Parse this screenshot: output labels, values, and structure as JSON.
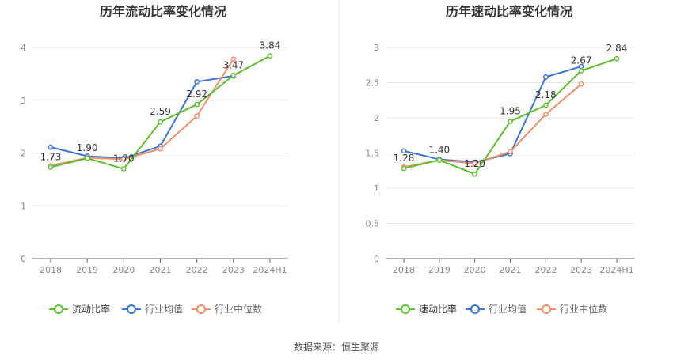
{
  "footer": {
    "source": "数据来源：恒生聚源"
  },
  "colors": {
    "primary": "#5dbf2c",
    "industry_avg": "#3b73d6",
    "industry_median": "#f0906a",
    "grid": "#e6e6e6",
    "axis": "#666666"
  },
  "chart_data": [
    {
      "type": "line",
      "title": "历年流动比率变化情况",
      "categories": [
        "2018",
        "2019",
        "2020",
        "2021",
        "2022",
        "2023",
        "2024H1"
      ],
      "ylim": [
        0,
        4
      ],
      "yticks": [
        "0",
        "1",
        "2",
        "3",
        "4"
      ],
      "grid": true,
      "legend_position": "bottom",
      "series": [
        {
          "name": "流动比率",
          "values": [
            1.73,
            1.9,
            1.7,
            2.59,
            2.92,
            3.47,
            3.84
          ],
          "labels": [
            "1.73",
            "1.90",
            "1.70",
            "2.59",
            "2.92",
            "3.47",
            "3.84"
          ]
        },
        {
          "name": "行业均值",
          "values": [
            2.11,
            1.94,
            1.9,
            2.13,
            3.35,
            3.46,
            null
          ]
        },
        {
          "name": "行业中位数",
          "values": [
            1.76,
            1.91,
            1.88,
            2.08,
            2.7,
            3.78,
            null
          ]
        }
      ]
    },
    {
      "type": "line",
      "title": "历年速动比率变化情况",
      "categories": [
        "2018",
        "2019",
        "2020",
        "2021",
        "2022",
        "2023",
        "2024H1"
      ],
      "ylim": [
        0,
        3
      ],
      "yticks": [
        "0",
        "0.5",
        "1",
        "1.5",
        "2",
        "2.5",
        "3"
      ],
      "grid": true,
      "legend_position": "bottom",
      "series": [
        {
          "name": "速动比率",
          "values": [
            1.28,
            1.4,
            1.2,
            1.95,
            2.18,
            2.67,
            2.84
          ],
          "labels": [
            "1.28",
            "1.40",
            "1.20",
            "1.95",
            "2.18",
            "2.67",
            "2.84"
          ]
        },
        {
          "name": "行业均值",
          "values": [
            1.53,
            1.41,
            1.37,
            1.49,
            2.58,
            2.73,
            null
          ]
        },
        {
          "name": "行业中位数",
          "values": [
            1.3,
            1.4,
            1.35,
            1.52,
            2.05,
            2.48,
            null
          ]
        }
      ]
    }
  ]
}
